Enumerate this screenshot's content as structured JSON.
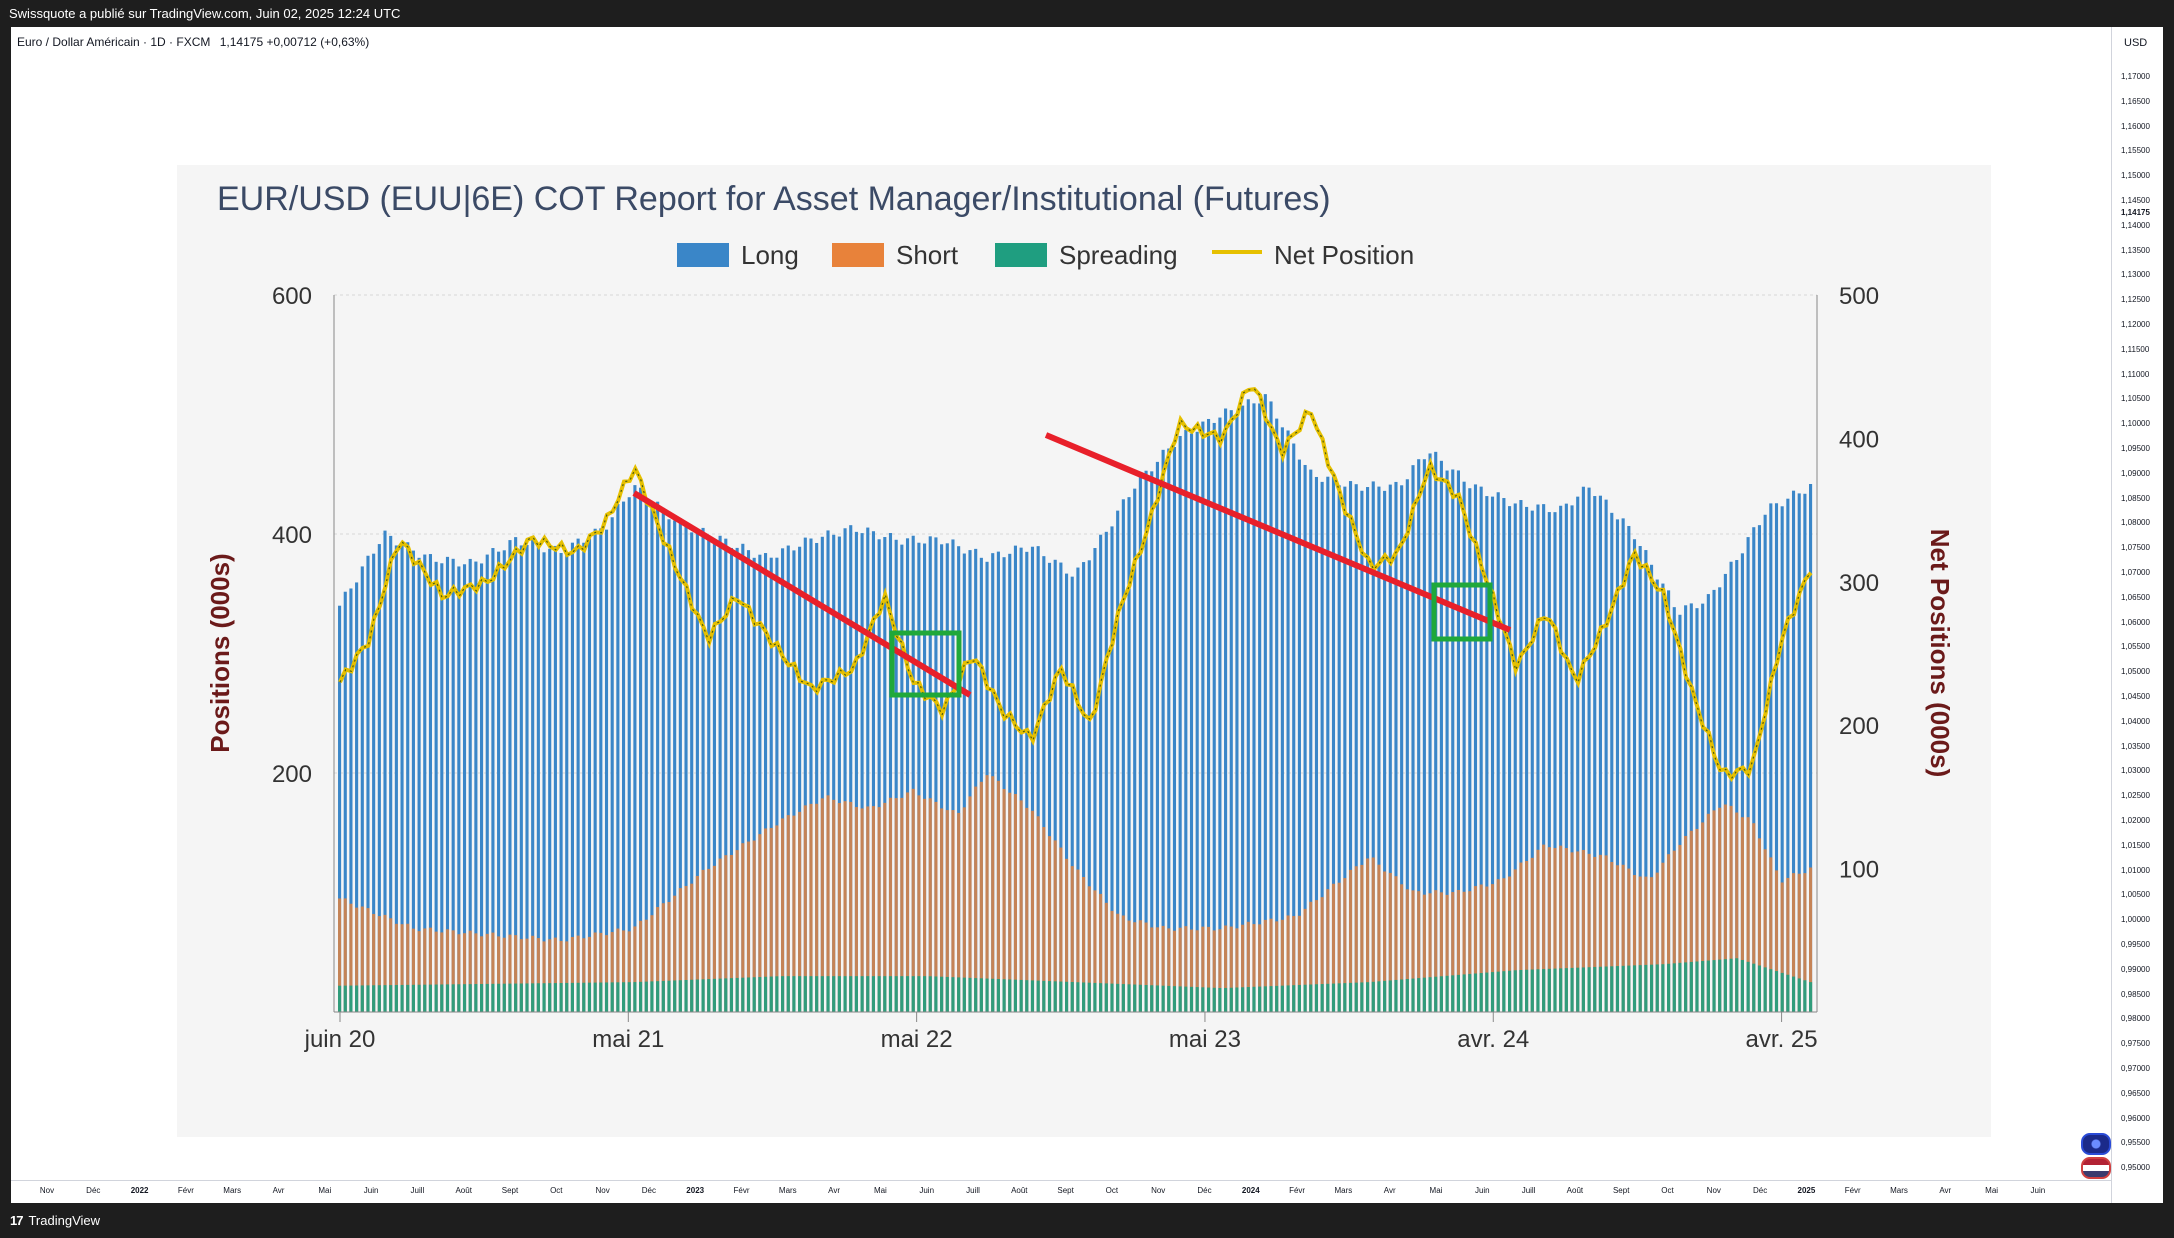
{
  "header": {
    "publisher_text": "Swissquote a publié sur TradingView.com, Juin 02, 2025 12:24 UTC"
  },
  "symbol": {
    "name": "Euro / Dollar Américain · 1D · FXCM",
    "price": "1,14175",
    "change": "+0,00712 (+0,63%)"
  },
  "price_axis": {
    "currency": "USD",
    "current_price": "1,14175",
    "ticks": [
      "1,17000",
      "1,16500",
      "1,16000",
      "1,15500",
      "1,15000",
      "1,14500",
      "1,14000",
      "1,13500",
      "1,13000",
      "1,12500",
      "1,12000",
      "1,11500",
      "1,11000",
      "1,10500",
      "1,10000",
      "1,09500",
      "1,09000",
      "1,08500",
      "1,08000",
      "1,07500",
      "1,07000",
      "1,06500",
      "1,06000",
      "1,05500",
      "1,05000",
      "1,04500",
      "1,04000",
      "1,03500",
      "1,03000",
      "1,02500",
      "1,02000",
      "1,01500",
      "1,01000",
      "1,00500",
      "1,00000",
      "0,99500",
      "0,99000",
      "0,98500",
      "0,98000",
      "0,97500",
      "0,97000",
      "0,96500",
      "0,96000",
      "0,95500",
      "0,95000"
    ]
  },
  "time_axis": {
    "labels": [
      {
        "t": "Nov",
        "bold": false
      },
      {
        "t": "Déc",
        "bold": false
      },
      {
        "t": "2022",
        "bold": true
      },
      {
        "t": "Févr",
        "bold": false
      },
      {
        "t": "Mars",
        "bold": false
      },
      {
        "t": "Avr",
        "bold": false
      },
      {
        "t": "Mai",
        "bold": false
      },
      {
        "t": "Juin",
        "bold": false
      },
      {
        "t": "Juill",
        "bold": false
      },
      {
        "t": "Août",
        "bold": false
      },
      {
        "t": "Sept",
        "bold": false
      },
      {
        "t": "Oct",
        "bold": false
      },
      {
        "t": "Nov",
        "bold": false
      },
      {
        "t": "Déc",
        "bold": false
      },
      {
        "t": "2023",
        "bold": true
      },
      {
        "t": "Févr",
        "bold": false
      },
      {
        "t": "Mars",
        "bold": false
      },
      {
        "t": "Avr",
        "bold": false
      },
      {
        "t": "Mai",
        "bold": false
      },
      {
        "t": "Juin",
        "bold": false
      },
      {
        "t": "Juill",
        "bold": false
      },
      {
        "t": "Août",
        "bold": false
      },
      {
        "t": "Sept",
        "bold": false
      },
      {
        "t": "Oct",
        "bold": false
      },
      {
        "t": "Nov",
        "bold": false
      },
      {
        "t": "Déc",
        "bold": false
      },
      {
        "t": "2024",
        "bold": true
      },
      {
        "t": "Févr",
        "bold": false
      },
      {
        "t": "Mars",
        "bold": false
      },
      {
        "t": "Avr",
        "bold": false
      },
      {
        "t": "Mai",
        "bold": false
      },
      {
        "t": "Juin",
        "bold": false
      },
      {
        "t": "Juill",
        "bold": false
      },
      {
        "t": "Août",
        "bold": false
      },
      {
        "t": "Sept",
        "bold": false
      },
      {
        "t": "Oct",
        "bold": false
      },
      {
        "t": "Nov",
        "bold": false
      },
      {
        "t": "Déc",
        "bold": false
      },
      {
        "t": "2025",
        "bold": true
      },
      {
        "t": "Févr",
        "bold": false
      },
      {
        "t": "Mars",
        "bold": false
      },
      {
        "t": "Avr",
        "bold": false
      },
      {
        "t": "Mai",
        "bold": false
      },
      {
        "t": "Juin",
        "bold": false
      }
    ]
  },
  "footer": {
    "brand": "TradingView",
    "brand_mark": "17"
  },
  "chart_data": {
    "type": "bar",
    "title": "EUR/USD (EUU|6E) COT Report for Asset Manager/Institutional (Futures)",
    "ylabel": "Positions (000s)",
    "y2label": "Net Positions (000s)",
    "ylim": [
      0,
      600
    ],
    "y2lim": [
      0,
      500
    ],
    "yticks": [
      200,
      400,
      600
    ],
    "y2ticks": [
      100,
      200,
      300,
      400,
      500
    ],
    "legend_position": "top",
    "grid": true,
    "colors": {
      "long": "#3a86c8",
      "short": "#e8823a",
      "spreading": "#1f9e80",
      "net": "#e6c000",
      "trendline": "#e8202a",
      "box": "#1fa83a"
    },
    "x_labels": [
      {
        "label": "juin 20",
        "at": 0
      },
      {
        "label": "mai 21",
        "at": 0.196
      },
      {
        "label": "mai 22",
        "at": 0.392
      },
      {
        "label": "mai 23",
        "at": 0.588
      },
      {
        "label": "avr. 24",
        "at": 0.784
      },
      {
        "label": "avr. 25",
        "at": 0.98
      }
    ],
    "series": [
      {
        "name": "Long",
        "values": [
          [
            0,
            340
          ],
          [
            0.03,
            400
          ],
          [
            0.06,
            380
          ],
          [
            0.09,
            375
          ],
          [
            0.12,
            395
          ],
          [
            0.15,
            385
          ],
          [
            0.18,
            405
          ],
          [
            0.2,
            440
          ],
          [
            0.23,
            410
          ],
          [
            0.26,
            395
          ],
          [
            0.29,
            380
          ],
          [
            0.32,
            395
          ],
          [
            0.35,
            405
          ],
          [
            0.38,
            395
          ],
          [
            0.41,
            395
          ],
          [
            0.44,
            380
          ],
          [
            0.47,
            390
          ],
          [
            0.5,
            365
          ],
          [
            0.52,
            400
          ],
          [
            0.54,
            440
          ],
          [
            0.57,
            480
          ],
          [
            0.6,
            500
          ],
          [
            0.63,
            515
          ],
          [
            0.66,
            450
          ],
          [
            0.69,
            440
          ],
          [
            0.72,
            440
          ],
          [
            0.74,
            470
          ],
          [
            0.77,
            440
          ],
          [
            0.8,
            425
          ],
          [
            0.83,
            420
          ],
          [
            0.85,
            440
          ],
          [
            0.88,
            400
          ],
          [
            0.91,
            335
          ],
          [
            0.93,
            345
          ],
          [
            0.95,
            380
          ],
          [
            0.97,
            420
          ],
          [
            1.0,
            440
          ]
        ]
      },
      {
        "name": "Short",
        "values": [
          [
            0,
            95
          ],
          [
            0.05,
            70
          ],
          [
            0.1,
            65
          ],
          [
            0.15,
            60
          ],
          [
            0.2,
            70
          ],
          [
            0.25,
            120
          ],
          [
            0.3,
            160
          ],
          [
            0.33,
            180
          ],
          [
            0.36,
            170
          ],
          [
            0.39,
            185
          ],
          [
            0.42,
            165
          ],
          [
            0.44,
            200
          ],
          [
            0.47,
            170
          ],
          [
            0.5,
            120
          ],
          [
            0.53,
            80
          ],
          [
            0.56,
            70
          ],
          [
            0.6,
            70
          ],
          [
            0.65,
            80
          ],
          [
            0.68,
            110
          ],
          [
            0.7,
            130
          ],
          [
            0.73,
            100
          ],
          [
            0.76,
            100
          ],
          [
            0.79,
            110
          ],
          [
            0.82,
            140
          ],
          [
            0.86,
            130
          ],
          [
            0.89,
            110
          ],
          [
            0.91,
            140
          ],
          [
            0.94,
            175
          ],
          [
            0.96,
            160
          ],
          [
            0.98,
            110
          ],
          [
            1.0,
            120
          ]
        ]
      },
      {
        "name": "Spreading",
        "values": [
          [
            0,
            22
          ],
          [
            0.2,
            25
          ],
          [
            0.3,
            30
          ],
          [
            0.4,
            30
          ],
          [
            0.5,
            25
          ],
          [
            0.6,
            20
          ],
          [
            0.7,
            25
          ],
          [
            0.8,
            35
          ],
          [
            0.9,
            40
          ],
          [
            0.95,
            45
          ],
          [
            1.0,
            25
          ]
        ]
      },
      {
        "name": "Net Position",
        "values": [
          [
            0,
            230
          ],
          [
            0.02,
            260
          ],
          [
            0.04,
            330
          ],
          [
            0.07,
            290
          ],
          [
            0.1,
            300
          ],
          [
            0.13,
            330
          ],
          [
            0.16,
            320
          ],
          [
            0.18,
            340
          ],
          [
            0.2,
            380
          ],
          [
            0.22,
            330
          ],
          [
            0.25,
            260
          ],
          [
            0.27,
            290
          ],
          [
            0.3,
            250
          ],
          [
            0.32,
            225
          ],
          [
            0.35,
            240
          ],
          [
            0.37,
            290
          ],
          [
            0.39,
            230
          ],
          [
            0.41,
            210
          ],
          [
            0.43,
            250
          ],
          [
            0.45,
            210
          ],
          [
            0.47,
            190
          ],
          [
            0.49,
            240
          ],
          [
            0.51,
            200
          ],
          [
            0.53,
            280
          ],
          [
            0.55,
            340
          ],
          [
            0.57,
            410
          ],
          [
            0.6,
            400
          ],
          [
            0.62,
            440
          ],
          [
            0.64,
            390
          ],
          [
            0.66,
            420
          ],
          [
            0.68,
            360
          ],
          [
            0.7,
            310
          ],
          [
            0.72,
            320
          ],
          [
            0.74,
            380
          ],
          [
            0.76,
            360
          ],
          [
            0.78,
            300
          ],
          [
            0.8,
            240
          ],
          [
            0.82,
            280
          ],
          [
            0.84,
            230
          ],
          [
            0.86,
            270
          ],
          [
            0.88,
            320
          ],
          [
            0.9,
            290
          ],
          [
            0.92,
            220
          ],
          [
            0.94,
            165
          ],
          [
            0.96,
            170
          ],
          [
            0.98,
            260
          ],
          [
            1.0,
            310
          ]
        ]
      }
    ]
  }
}
